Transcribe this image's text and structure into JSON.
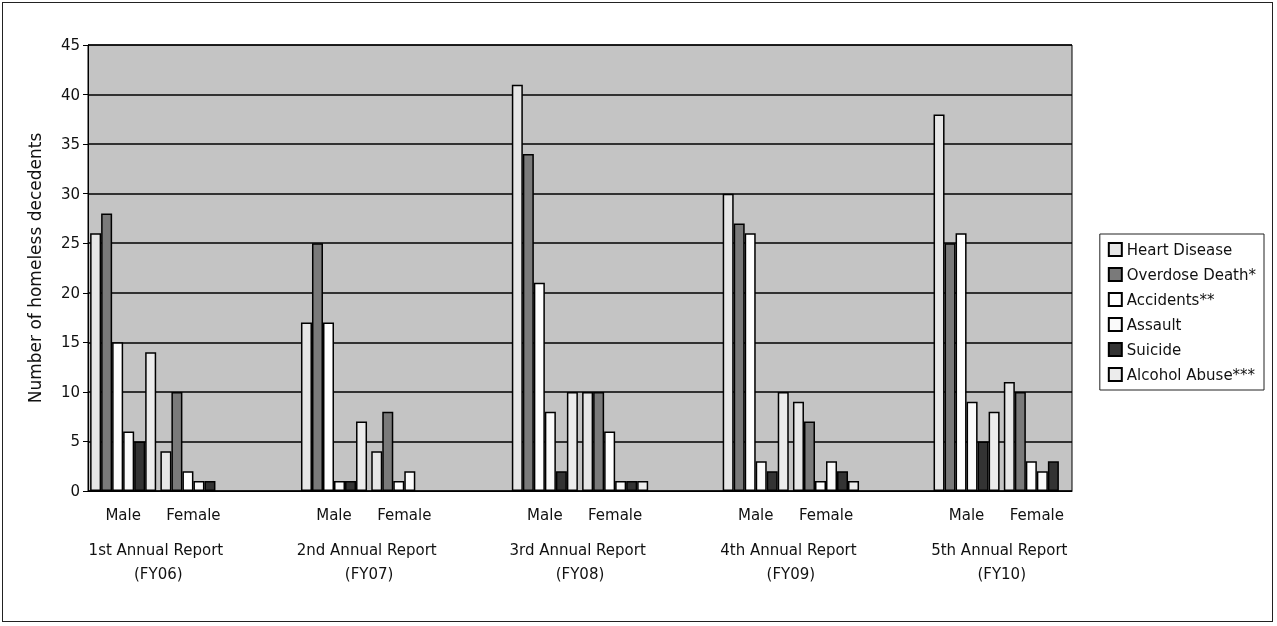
{
  "chart_data": {
    "type": "bar",
    "ylabel": "Number of homeless decedents",
    "categories": [
      "Male",
      "Female",
      null,
      "Male",
      "Female",
      null,
      "Male",
      "Female",
      null,
      "Male",
      "Female",
      null,
      "Male",
      "Female"
    ],
    "series": [
      {
        "name": "Heart Disease",
        "color": "#e6e6e6",
        "values": [
          26,
          4,
          null,
          17,
          4,
          null,
          41,
          10,
          null,
          30,
          9,
          null,
          38,
          11
        ]
      },
      {
        "name": "Overdose Death*",
        "color": "#7a7a7a",
        "values": [
          28,
          10,
          null,
          25,
          8,
          null,
          34,
          10,
          null,
          27,
          7,
          null,
          25,
          10
        ]
      },
      {
        "name": "Accidents**",
        "color": "#ffffff",
        "values": [
          15,
          2,
          null,
          17,
          1,
          null,
          21,
          6,
          null,
          26,
          1,
          null,
          26,
          3
        ]
      },
      {
        "name": "Assault",
        "color": "#fafafa",
        "values": [
          6,
          1,
          null,
          1,
          2,
          null,
          8,
          1,
          null,
          3,
          3,
          null,
          9,
          2
        ]
      },
      {
        "name": "Suicide",
        "color": "#333333",
        "values": [
          5,
          1,
          null,
          1,
          0,
          null,
          2,
          1,
          null,
          2,
          2,
          null,
          5,
          3
        ]
      },
      {
        "name": "Alcohol Abuse***",
        "color": "#ececec",
        "values": [
          14,
          0,
          null,
          7,
          0,
          null,
          10,
          1,
          null,
          10,
          1,
          null,
          8,
          0
        ]
      }
    ],
    "annotations": [
      "1st Annual Report (FY06)",
      "2nd Annual Report (FY07)",
      "3rd Annual Report (FY08)",
      "4th Annual Report (FY09)",
      "5th Annual Report (FY10)"
    ],
    "ylim": [
      0,
      45
    ],
    "yticks": [
      0,
      5,
      10,
      15,
      20,
      25,
      30,
      35,
      40,
      45
    ],
    "grid": "y",
    "legend": "right"
  }
}
